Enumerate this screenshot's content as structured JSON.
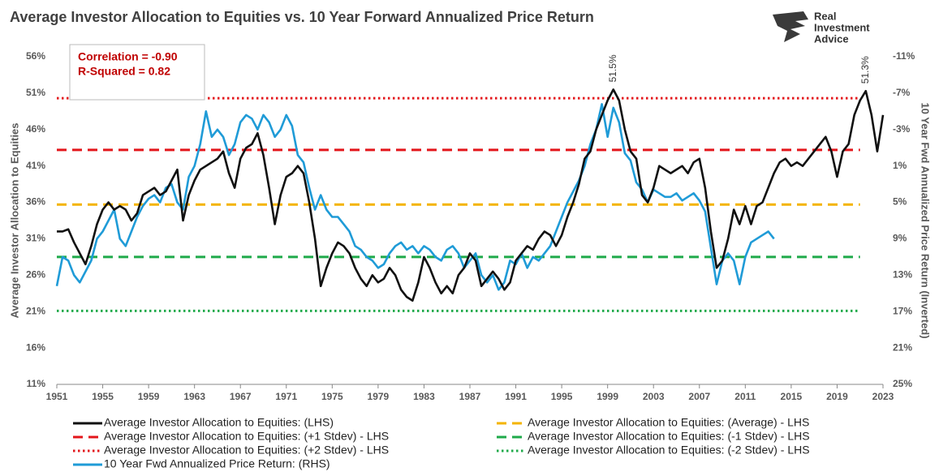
{
  "chart_data": {
    "type": "line",
    "title": "Average Investor Allocation to Equities vs. 10 Year Forward Annualized Price Return",
    "y_label": "Average Investor Allocation to Equities",
    "y2_label": "10 Year Fwd Annualized Price Return (Inverted)",
    "logo": [
      "Real",
      "Investment",
      "Advice"
    ],
    "stats_box": [
      "Correlation = -0.90",
      "R-Squared = 0.82"
    ],
    "annotations": [
      {
        "text": "51.5%",
        "x": 1999.5,
        "y": 51.5
      },
      {
        "text": "51.3%",
        "x": 2021.5,
        "y": 51.3
      }
    ],
    "xlim": [
      1951,
      2023
    ],
    "xticks": [
      1951,
      1955,
      1959,
      1963,
      1967,
      1971,
      1975,
      1979,
      1983,
      1987,
      1991,
      1995,
      1999,
      2003,
      2007,
      2011,
      2015,
      2019,
      2023
    ],
    "ylim": [
      11,
      56
    ],
    "yticks": [
      {
        "value": 11,
        "label": "11%"
      },
      {
        "value": 16,
        "label": "16%"
      },
      {
        "value": 21,
        "label": "21%"
      },
      {
        "value": 26,
        "label": "26%"
      },
      {
        "value": 31,
        "label": "31%"
      },
      {
        "value": 36,
        "label": "36%"
      },
      {
        "value": 41,
        "label": "41%"
      },
      {
        "value": 46,
        "label": "46%"
      },
      {
        "value": 51,
        "label": "51%"
      },
      {
        "value": 56,
        "label": "56%"
      }
    ],
    "y2lim": [
      25,
      -11
    ],
    "y2_inverted": true,
    "y2ticks": [
      {
        "value": -11,
        "label": "-11%"
      },
      {
        "value": -7,
        "label": "-7%"
      },
      {
        "value": -3,
        "label": "-3%"
      },
      {
        "value": 1,
        "label": "1%"
      },
      {
        "value": 5,
        "label": "5%"
      },
      {
        "value": 9,
        "label": "9%"
      },
      {
        "value": 13,
        "label": "13%"
      },
      {
        "value": 17,
        "label": "17%"
      },
      {
        "value": 21,
        "label": "21%"
      },
      {
        "value": 25,
        "label": "25%"
      }
    ],
    "series": [
      {
        "name": "Average Investor Allocation to Equities: (LHS)",
        "color": "#111111",
        "axis": "y",
        "x": [
          1951,
          1951.5,
          1952,
          1952.5,
          1953,
          1953.5,
          1954,
          1954.5,
          1955,
          1955.5,
          1956,
          1956.5,
          1957,
          1957.5,
          1958,
          1958.5,
          1959,
          1959.5,
          1960,
          1960.5,
          1961,
          1961.5,
          1962,
          1962.5,
          1963,
          1963.5,
          1964,
          1964.5,
          1965,
          1965.5,
          1966,
          1966.5,
          1967,
          1967.5,
          1968,
          1968.5,
          1969,
          1969.5,
          1970,
          1970.5,
          1971,
          1971.5,
          1972,
          1972.5,
          1973,
          1973.5,
          1974,
          1974.5,
          1975,
          1975.5,
          1976,
          1976.5,
          1977,
          1977.5,
          1978,
          1978.5,
          1979,
          1979.5,
          1980,
          1980.5,
          1981,
          1981.5,
          1982,
          1982.5,
          1983,
          1983.5,
          1984,
          1984.5,
          1985,
          1985.5,
          1986,
          1986.5,
          1987,
          1987.5,
          1988,
          1988.5,
          1989,
          1989.5,
          1990,
          1990.5,
          1991,
          1991.5,
          1992,
          1992.5,
          1993,
          1993.5,
          1994,
          1994.5,
          1995,
          1995.5,
          1996,
          1996.5,
          1997,
          1997.5,
          1998,
          1998.5,
          1999,
          1999.5,
          2000,
          2000.5,
          2001,
          2001.5,
          2002,
          2002.5,
          2003,
          2003.5,
          2004,
          2004.5,
          2005,
          2005.5,
          2006,
          2006.5,
          2007,
          2007.5,
          2008,
          2008.5,
          2009,
          2009.5,
          2010,
          2010.5,
          2011,
          2011.5,
          2012,
          2012.5,
          2013,
          2013.5,
          2014,
          2014.5,
          2015,
          2015.5,
          2016,
          2016.5,
          2017,
          2017.5,
          2018,
          2018.5,
          2019,
          2019.5,
          2020,
          2020.5,
          2021,
          2021.5,
          2022,
          2022.5,
          2023
        ],
        "values": [
          32,
          32,
          32.3,
          30.5,
          29,
          27.5,
          30,
          33,
          35,
          36,
          35,
          35.5,
          35,
          33.5,
          34.5,
          37,
          37.5,
          38,
          37,
          37.5,
          39,
          40.5,
          33.5,
          37,
          39,
          40.5,
          41,
          41.5,
          42,
          43,
          40,
          38,
          42,
          43.5,
          44,
          45.5,
          42.5,
          38,
          33,
          37,
          39.5,
          40,
          41,
          40,
          36,
          31,
          24.5,
          27,
          29,
          30.5,
          30,
          29,
          27,
          25.5,
          24.5,
          26,
          25,
          25.5,
          27,
          26,
          24,
          23,
          22.5,
          25,
          28.5,
          27,
          25,
          23.5,
          24.5,
          23.5,
          26,
          27,
          29,
          28,
          24.5,
          25.5,
          26.5,
          25.5,
          24,
          25,
          28,
          29,
          30,
          29.5,
          31,
          32,
          31.5,
          30,
          31.5,
          34,
          36,
          38.5,
          42,
          43,
          46,
          48,
          50,
          51.5,
          50,
          46,
          43,
          42,
          37,
          36,
          38,
          41,
          40.5,
          40,
          40.5,
          41,
          40,
          41.5,
          42,
          38,
          32,
          27,
          28,
          31,
          35,
          33,
          35.5,
          33,
          35.5,
          36,
          38,
          40,
          41.5,
          42,
          41,
          41.5,
          41,
          42,
          43,
          44,
          45,
          43,
          39.5,
          43,
          44,
          48,
          50,
          51.3,
          48,
          43,
          48
        ]
      },
      {
        "name": "10 Year Fwd Annualized Price Return: (RHS)",
        "color": "#1f9bd7",
        "axis": "y2",
        "x": [
          1951,
          1951.5,
          1952,
          1952.5,
          1953,
          1953.5,
          1954,
          1954.5,
          1955,
          1955.5,
          1956,
          1956.5,
          1957,
          1957.5,
          1958,
          1958.5,
          1959,
          1959.5,
          1960,
          1960.5,
          1961,
          1961.5,
          1962,
          1962.5,
          1963,
          1963.5,
          1964,
          1964.5,
          1965,
          1965.5,
          1966,
          1966.5,
          1967,
          1967.5,
          1968,
          1968.5,
          1969,
          1969.5,
          1970,
          1970.5,
          1971,
          1971.5,
          1972,
          1972.5,
          1973,
          1973.5,
          1974,
          1974.5,
          1975,
          1975.5,
          1976,
          1976.5,
          1977,
          1977.5,
          1978,
          1978.5,
          1979,
          1979.5,
          1980,
          1980.5,
          1981,
          1981.5,
          1982,
          1982.5,
          1983,
          1983.5,
          1984,
          1984.5,
          1985,
          1985.5,
          1986,
          1986.5,
          1987,
          1987.5,
          1988,
          1988.5,
          1989,
          1989.5,
          1990,
          1990.5,
          1991,
          1991.5,
          1992,
          1992.5,
          1993,
          1993.5,
          1994,
          1994.5,
          1995,
          1995.5,
          1996,
          1996.5,
          1997,
          1997.5,
          1998,
          1998.5,
          1999,
          1999.5,
          2000,
          2000.5,
          2001,
          2001.5,
          2002,
          2002.5,
          2003,
          2003.5,
          2004,
          2004.5,
          2005,
          2005.5,
          2006,
          2006.5,
          2007,
          2007.5,
          2008,
          2008.5,
          2009,
          2009.5,
          2010,
          2010.5,
          2011,
          2011.5,
          2012,
          2012.5,
          2013,
          2013.5
        ],
        "values": [
          14.2,
          11,
          11.4,
          13,
          13.8,
          12.6,
          11.4,
          9,
          8.2,
          7,
          5.8,
          9,
          9.8,
          8.2,
          6.6,
          5.4,
          4.6,
          4.2,
          5,
          3.4,
          3,
          5,
          5.8,
          2.2,
          1,
          -1.4,
          -5,
          -2.2,
          -3,
          -2.2,
          -0.2,
          -1.4,
          -3.8,
          -4.6,
          -4.2,
          -3,
          -4.6,
          -3.8,
          -2.2,
          -3,
          -4.6,
          -3.4,
          -0.2,
          0.6,
          3.4,
          5.8,
          4.2,
          5.8,
          6.6,
          6.6,
          7.4,
          8.2,
          9.8,
          10.2,
          11,
          11.4,
          12.2,
          11.8,
          10.6,
          9.8,
          9.4,
          10.2,
          9.8,
          10.6,
          9.8,
          10.2,
          11,
          11.4,
          10.2,
          9.8,
          10.6,
          12.2,
          11.4,
          10.6,
          13,
          13.8,
          13,
          14.6,
          13.8,
          11.4,
          11.8,
          10.6,
          12.2,
          11,
          11.4,
          10.6,
          9.8,
          8.2,
          6.6,
          5,
          3.8,
          2.6,
          1,
          -1.4,
          -3,
          -5.8,
          -2.2,
          -5.4,
          -3.8,
          -0.4,
          0.4,
          2.8,
          3.6,
          5,
          3.6,
          4,
          4.4,
          4.4,
          4,
          4.8,
          4.4,
          4,
          4.8,
          6,
          10,
          14,
          11.4,
          10.6,
          11.4,
          14,
          11,
          9.4,
          9,
          8.6,
          8.2,
          9
        ]
      }
    ],
    "reference_lines": [
      {
        "name": "Average Investor Allocation to Equities: (Average) - LHS",
        "color": "#f4b400",
        "style": "dashed",
        "value": 35.7
      },
      {
        "name": "Average Investor Allocation to Equities: (+1  Stdev) - LHS",
        "color": "#e3161b",
        "style": "dashed",
        "value": 43.2
      },
      {
        "name": "Average Investor Allocation to Equities: (+2  Stdev) - LHS",
        "color": "#e3161b",
        "style": "dotted",
        "value": 50.3
      },
      {
        "name": "Average Investor Allocation to Equities: (-1  Stdev) - LHS",
        "color": "#1faa4a",
        "style": "dashed",
        "value": 28.5
      },
      {
        "name": "Average Investor Allocation to Equities: (-2  Stdev) - LHS",
        "color": "#1faa4a",
        "style": "dotted",
        "value": 21.1
      }
    ]
  }
}
